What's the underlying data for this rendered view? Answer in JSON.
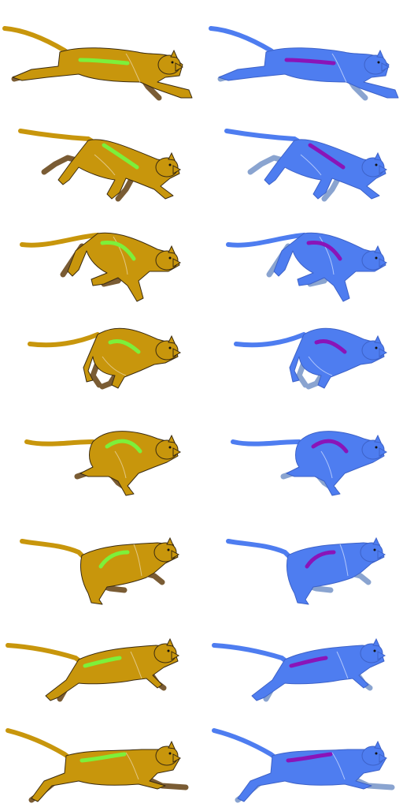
{
  "figure": {
    "kind": "running-cat sprite sheet",
    "frame_count": 8,
    "panels": [
      "original-colors",
      "recolored"
    ]
  },
  "palettes": {
    "original": {
      "body": "#c8960c",
      "far_legs": "#7a5c34",
      "outline": "#3a2a10",
      "spine_marker": "#7df03a",
      "detail_line": "#e8d3a0"
    },
    "recolored": {
      "body": "#4e7df0",
      "far_legs": "#8aa4d0",
      "outline": "#3d62c8",
      "spine_marker": "#8a14b8",
      "detail_line": "#c8d8ff"
    }
  },
  "icons": {
    "figure": "cat-silhouette",
    "marker": "spine-stroke"
  }
}
